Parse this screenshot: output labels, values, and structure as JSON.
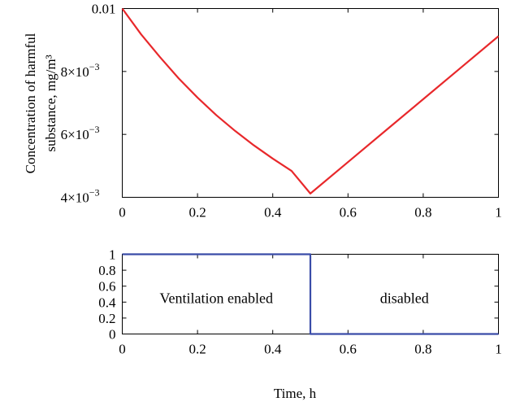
{
  "chart_data": [
    {
      "type": "line",
      "xlabel": "",
      "ylabel": [
        "Concentration of harmful",
        "substance, mg/m³"
      ],
      "xlim": [
        0,
        1
      ],
      "ylim": [
        0.004,
        0.01
      ],
      "xticks": [
        {
          "value": 0,
          "label": "0"
        },
        {
          "value": 0.2,
          "label": "0.2"
        },
        {
          "value": 0.4,
          "label": "0.4"
        },
        {
          "value": 0.6,
          "label": "0.6"
        },
        {
          "value": 0.8,
          "label": "0.8"
        },
        {
          "value": 1,
          "label": "1"
        }
      ],
      "yticks": [
        {
          "value": 0.004,
          "label": "4×10",
          "exp": "−3"
        },
        {
          "value": 0.006,
          "label": "6×10",
          "exp": "−3"
        },
        {
          "value": 0.008,
          "label": "8×10",
          "exp": "−3"
        },
        {
          "value": 0.01,
          "label": "0.01",
          "exp": ""
        }
      ],
      "grid": false,
      "series": [
        {
          "color": "#e8282b",
          "x": [
            0,
            0.05,
            0.1,
            0.15,
            0.2,
            0.25,
            0.3,
            0.35,
            0.4,
            0.45,
            0.5,
            0.6,
            0.7,
            0.8,
            0.9,
            1.0
          ],
          "y": [
            0.01,
            0.00918,
            0.00846,
            0.00778,
            0.00717,
            0.00661,
            0.00611,
            0.00565,
            0.00523,
            0.00484,
            0.00412,
            0.00512,
            0.00612,
            0.00712,
            0.00812,
            0.00912
          ]
        }
      ]
    },
    {
      "type": "line",
      "xlabel": "Time, h",
      "ylabel": "",
      "xlim": [
        0,
        1
      ],
      "ylim": [
        0,
        1
      ],
      "xticks": [
        {
          "value": 0,
          "label": "0"
        },
        {
          "value": 0.2,
          "label": "0.2"
        },
        {
          "value": 0.4,
          "label": "0.4"
        },
        {
          "value": 0.6,
          "label": "0.6"
        },
        {
          "value": 0.8,
          "label": "0.8"
        },
        {
          "value": 1,
          "label": "1"
        }
      ],
      "yticks": [
        {
          "value": 0,
          "label": "0"
        },
        {
          "value": 0.2,
          "label": "0.2"
        },
        {
          "value": 0.4,
          "label": "0.4"
        },
        {
          "value": 0.6,
          "label": "0.6"
        },
        {
          "value": 0.8,
          "label": "0.8"
        },
        {
          "value": 1,
          "label": "1"
        }
      ],
      "grid": false,
      "series": [
        {
          "color": "#3a4ca8",
          "x": [
            0,
            0.5,
            0.5,
            1
          ],
          "y": [
            1,
            1,
            0,
            0
          ]
        }
      ],
      "annotations": [
        {
          "text": "Ventilation enabled",
          "x": 0.25,
          "y": 0.45
        },
        {
          "text": "disabled",
          "x": 0.75,
          "y": 0.45
        }
      ]
    }
  ]
}
